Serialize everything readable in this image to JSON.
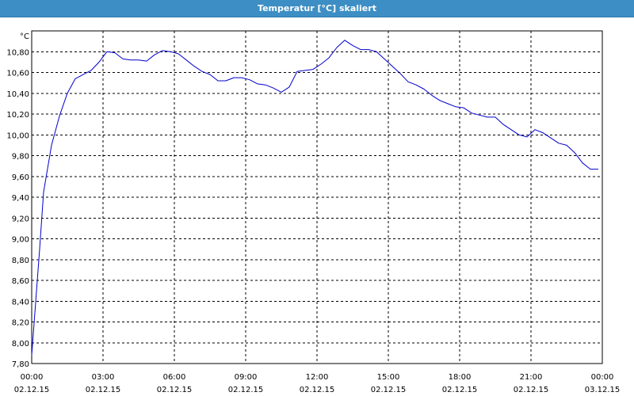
{
  "window": {
    "title": "Temperatur [°C] skaliert"
  },
  "colors": {
    "title_bar": "#3d8ec4",
    "series_line": "#0000cc",
    "grid": "#000000",
    "axis": "#000000"
  },
  "chart_data": {
    "type": "line",
    "title": "Temperatur [°C] skaliert",
    "ylabel": "°C",
    "xlabel": "",
    "ylim": [
      7.8,
      11.0
    ],
    "xlim": [
      "2015-12-02 00:00",
      "2015-12-03 00:00"
    ],
    "grid": true,
    "legend": "none",
    "y_ticks": [
      "7,80",
      "8,00",
      "8,20",
      "8,40",
      "8,60",
      "8,80",
      "9,00",
      "9,20",
      "9,40",
      "9,60",
      "9,80",
      "10,00",
      "10,20",
      "10,40",
      "10,60",
      "10,80"
    ],
    "y_tick_values": [
      7.8,
      8.0,
      8.2,
      8.4,
      8.6,
      8.8,
      9.0,
      9.2,
      9.4,
      9.6,
      9.8,
      10.0,
      10.2,
      10.4,
      10.6,
      10.8
    ],
    "x_ticks": [
      {
        "time": "00:00",
        "date": "02.12.15"
      },
      {
        "time": "03:00",
        "date": "02.12.15"
      },
      {
        "time": "06:00",
        "date": "02.12.15"
      },
      {
        "time": "09:00",
        "date": "02.12.15"
      },
      {
        "time": "12:00",
        "date": "02.12.15"
      },
      {
        "time": "15:00",
        "date": "02.12.15"
      },
      {
        "time": "18:00",
        "date": "02.12.15"
      },
      {
        "time": "21:00",
        "date": "02.12.15"
      },
      {
        "time": "00:00",
        "date": "03.12.15"
      }
    ],
    "x_tick_values": [
      "2015-12-02 00:00",
      "2015-12-02 03:00",
      "2015-12-02 06:00",
      "2015-12-02 09:00",
      "2015-12-02 12:00",
      "2015-12-02 15:00",
      "2015-12-02 18:00",
      "2015-12-02 21:00",
      "2015-12-03 00:00"
    ],
    "series": [
      {
        "x": [
          "2015-12-02 00:00",
          "2015-12-02 00:20",
          "2015-12-02 00:30",
          "2015-12-02 00:50",
          "2015-12-02 01:10",
          "2015-12-02 01:30",
          "2015-12-02 01:50",
          "2015-12-02 02:10",
          "2015-12-02 02:30",
          "2015-12-02 02:50",
          "2015-12-02 03:10",
          "2015-12-02 03:30",
          "2015-12-02 03:50",
          "2015-12-02 04:10",
          "2015-12-02 04:30",
          "2015-12-02 04:50",
          "2015-12-02 05:10",
          "2015-12-02 05:30",
          "2015-12-02 05:50",
          "2015-12-02 06:10",
          "2015-12-02 06:30",
          "2015-12-02 06:50",
          "2015-12-02 07:10",
          "2015-12-02 07:30",
          "2015-12-02 07:50",
          "2015-12-02 08:10",
          "2015-12-02 08:30",
          "2015-12-02 08:50",
          "2015-12-02 09:10",
          "2015-12-02 09:30",
          "2015-12-02 09:50",
          "2015-12-02 10:10",
          "2015-12-02 10:30",
          "2015-12-02 10:50",
          "2015-12-02 11:10",
          "2015-12-02 11:30",
          "2015-12-02 11:50",
          "2015-12-02 12:10",
          "2015-12-02 12:30",
          "2015-12-02 12:50",
          "2015-12-02 13:10",
          "2015-12-02 13:30",
          "2015-12-02 13:50",
          "2015-12-02 14:10",
          "2015-12-02 14:30",
          "2015-12-02 14:50",
          "2015-12-02 15:10",
          "2015-12-02 15:30",
          "2015-12-02 15:50",
          "2015-12-02 16:10",
          "2015-12-02 16:30",
          "2015-12-02 16:50",
          "2015-12-02 17:10",
          "2015-12-02 17:30",
          "2015-12-02 17:50",
          "2015-12-02 18:10",
          "2015-12-02 18:30",
          "2015-12-02 18:50",
          "2015-12-02 19:10",
          "2015-12-02 19:30",
          "2015-12-02 19:50",
          "2015-12-02 20:10",
          "2015-12-02 20:30",
          "2015-12-02 20:50",
          "2015-12-02 21:10",
          "2015-12-02 21:30",
          "2015-12-02 21:50",
          "2015-12-02 22:10",
          "2015-12-02 22:30",
          "2015-12-02 22:50",
          "2015-12-02 23:10",
          "2015-12-02 23:30",
          "2015-12-02 23:50"
        ],
        "values": [
          7.88,
          8.9,
          9.45,
          9.9,
          10.18,
          10.4,
          10.54,
          10.58,
          10.62,
          10.7,
          10.8,
          10.79,
          10.73,
          10.72,
          10.72,
          10.71,
          10.77,
          10.81,
          10.8,
          10.78,
          10.72,
          10.66,
          10.61,
          10.58,
          10.52,
          10.52,
          10.55,
          10.55,
          10.53,
          10.49,
          10.48,
          10.45,
          10.41,
          10.46,
          10.61,
          10.62,
          10.63,
          10.68,
          10.74,
          10.84,
          10.91,
          10.86,
          10.82,
          10.82,
          10.8,
          10.73,
          10.66,
          10.59,
          10.51,
          10.48,
          10.44,
          10.38,
          10.33,
          10.3,
          10.27,
          10.26,
          10.21,
          10.19,
          10.17,
          10.17,
          10.1,
          10.05,
          10.0,
          9.98,
          10.05,
          10.02,
          9.97,
          9.92,
          9.9,
          9.83,
          9.73,
          9.67,
          9.67
        ]
      }
    ]
  }
}
